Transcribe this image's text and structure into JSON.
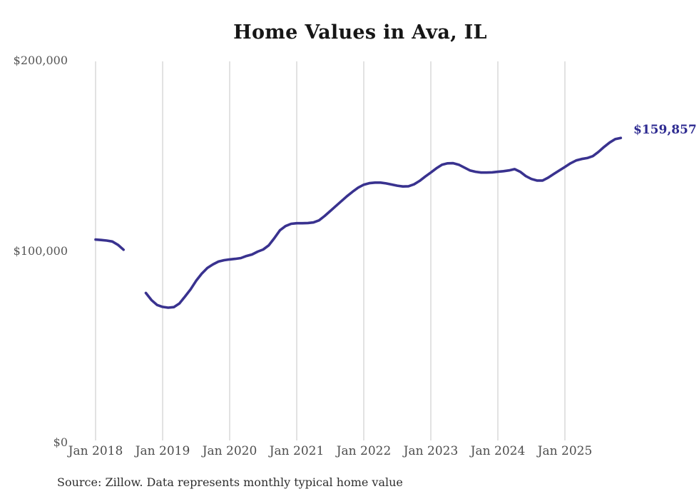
{
  "chart_data": {
    "type": "line",
    "title": "Home Values in Ava, IL",
    "source_note": "Source: Zillow. Data represents monthly typical home value",
    "end_label": "$159,857",
    "x_unit": "month",
    "x_first_point": "Jan 2018",
    "x_tick_labels": [
      "Jan 2018",
      "Jan 2019",
      "Jan 2020",
      "Jan 2021",
      "Jan 2022",
      "Jan 2023",
      "Jan 2024",
      "Jan 2025"
    ],
    "y_ticks": [
      {
        "label": "$0",
        "value": 0
      },
      {
        "label": "$100,000",
        "value": 100000
      },
      {
        "label": "$200,000",
        "value": 200000
      }
    ],
    "ylim": [
      0,
      200000
    ],
    "grid": "vertical-only",
    "legend": "none",
    "colors": {
      "line": "#39328f",
      "end_label": "#2e2b91",
      "grid": "#c5c5c5",
      "title": "#161616",
      "axis_text": "#4d4d4d",
      "source_text": "#2e2e2e"
    },
    "series": [
      {
        "name": "Monthly typical home value",
        "values": [
          106500,
          106300,
          106000,
          105500,
          103800,
          101200,
          null,
          null,
          null,
          78500,
          74800,
          72200,
          71200,
          70800,
          71100,
          73000,
          76600,
          80400,
          84900,
          88600,
          91600,
          93500,
          95000,
          95700,
          96100,
          96400,
          96800,
          97900,
          98700,
          100200,
          101300,
          103500,
          107300,
          111400,
          113600,
          114800,
          115100,
          115100,
          115200,
          115500,
          116600,
          118900,
          121500,
          124100,
          126700,
          129300,
          131600,
          133800,
          135300,
          136100,
          136400,
          136400,
          136000,
          135400,
          134800,
          134400,
          134500,
          135500,
          137300,
          139600,
          141700,
          143900,
          145800,
          146500,
          146600,
          145800,
          144300,
          142800,
          142100,
          141700,
          141700,
          141800,
          142100,
          142400,
          142800,
          143500,
          142100,
          139800,
          138300,
          137500,
          137500,
          139000,
          140900,
          142800,
          144600,
          146500,
          148000,
          148800,
          149300,
          150300,
          152500,
          155100,
          157400,
          159200,
          159857
        ]
      }
    ]
  }
}
